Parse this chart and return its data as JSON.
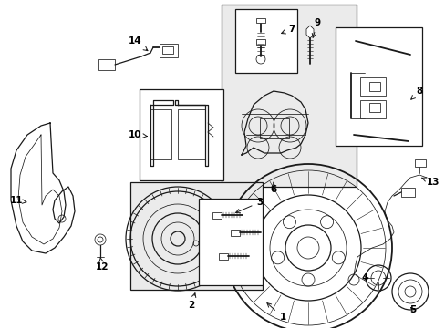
{
  "background_color": "#ffffff",
  "line_color": "#1a1a1a",
  "box_fill": "#e0e0e0",
  "box_fill2": "#ebebeb",
  "text_color": "#000000",
  "lw_main": 0.9,
  "lw_thin": 0.55,
  "lw_thick": 1.3
}
